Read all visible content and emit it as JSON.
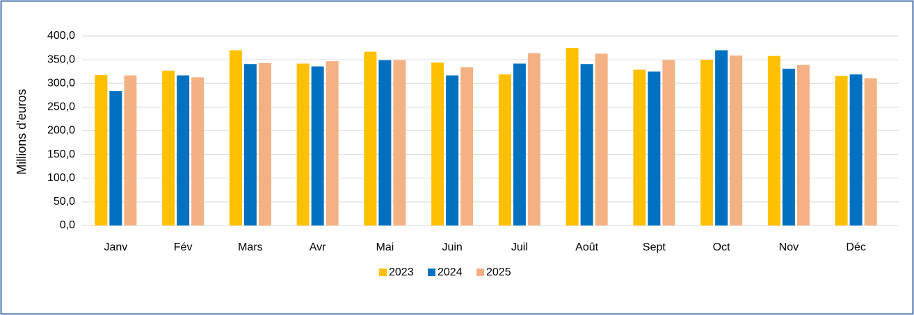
{
  "chart_data": {
    "type": "bar",
    "y_label": "Millions d'euros",
    "categories": [
      "Janv",
      "Fév",
      "Mars",
      "Avr",
      "Mai",
      "Juin",
      "Juil",
      "Août",
      "Sept",
      "Oct",
      "Nov",
      "Déc"
    ],
    "series": [
      {
        "name": "2023",
        "color": "#ffc000",
        "values": [
          318,
          327,
          370,
          342,
          367,
          344,
          319,
          375,
          329,
          350,
          358,
          316
        ]
      },
      {
        "name": "2024",
        "color": "#0070c0",
        "values": [
          284,
          317,
          341,
          336,
          349,
          317,
          342,
          341,
          325,
          370,
          331,
          319
        ]
      },
      {
        "name": "2025",
        "color": "#f4b183",
        "values": [
          317,
          313,
          343,
          347,
          349,
          334,
          364,
          363,
          349,
          359,
          339,
          311
        ]
      }
    ],
    "ylim": [
      0,
      400
    ],
    "yticks": [
      {
        "value": 0,
        "label": "0,0"
      },
      {
        "value": 50,
        "label": "50,0"
      },
      {
        "value": 100,
        "label": "100,0"
      },
      {
        "value": 150,
        "label": "150,0"
      },
      {
        "value": 200,
        "label": "200,0"
      },
      {
        "value": 250,
        "label": "250,0"
      },
      {
        "value": 300,
        "label": "300,0"
      },
      {
        "value": 350,
        "label": "350,0"
      },
      {
        "value": 400,
        "label": "400,0"
      }
    ],
    "grid": true,
    "legend": "bottom"
  }
}
